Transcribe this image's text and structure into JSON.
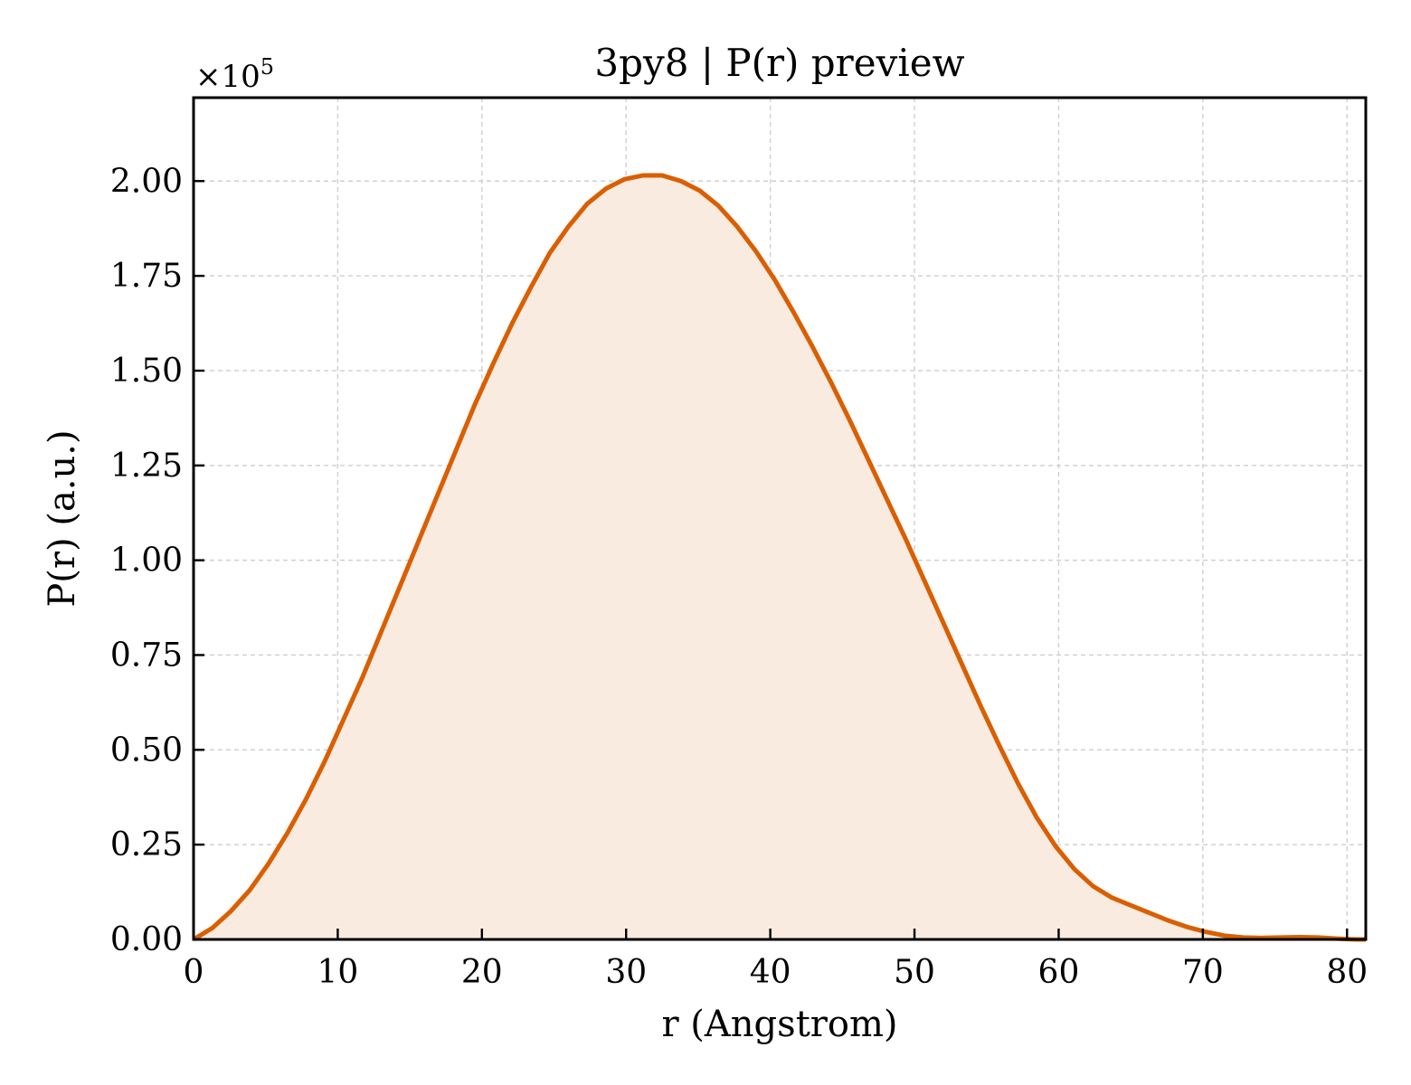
{
  "chart_data": {
    "type": "area",
    "title": "3py8 | P(r) preview",
    "xlabel": "r (Angstrom)",
    "ylabel": "P(r) (a.u.)",
    "y_multiplier": "×10",
    "y_multiplier_exponent": "5",
    "xlim": [
      0,
      81.3
    ],
    "ylim": [
      0,
      2.22
    ],
    "x_ticks": [
      0,
      10,
      20,
      30,
      40,
      50,
      60,
      70,
      80
    ],
    "x_tick_labels": [
      "0",
      "10",
      "20",
      "30",
      "40",
      "50",
      "60",
      "70",
      "80"
    ],
    "y_ticks": [
      0,
      0.25,
      0.5,
      0.75,
      1.0,
      1.25,
      1.5,
      1.75,
      2.0
    ],
    "y_tick_labels": [
      "0.00",
      "0.25",
      "0.50",
      "0.75",
      "1.00",
      "1.25",
      "1.50",
      "1.75",
      "2.00"
    ],
    "grid": true,
    "line_color": "#d95f02",
    "fill_color": "#f9ebe0",
    "series": [
      {
        "x": [
          0,
          1.3,
          2.6,
          3.9,
          5.2,
          6.5,
          7.8,
          9.1,
          10.4,
          11.7,
          13.0,
          14.3,
          15.6,
          16.9,
          18.2,
          19.5,
          20.8,
          22.1,
          23.4,
          24.7,
          26.0,
          27.3,
          28.6,
          29.9,
          31.2,
          32.5,
          33.8,
          35.1,
          36.4,
          37.7,
          39.0,
          40.3,
          41.6,
          42.9,
          44.2,
          45.5,
          46.8,
          48.1,
          49.4,
          50.7,
          52.0,
          53.3,
          54.6,
          55.9,
          57.2,
          58.5,
          59.8,
          61.1,
          62.4,
          63.7,
          65.0,
          66.3,
          67.6,
          68.9,
          70.2,
          71.5,
          72.8,
          74.1,
          75.4,
          76.7,
          78.0,
          79.3,
          80.6,
          81.3
        ],
        "y": [
          0.0,
          0.03,
          0.075,
          0.13,
          0.2,
          0.28,
          0.37,
          0.47,
          0.58,
          0.69,
          0.81,
          0.93,
          1.05,
          1.17,
          1.29,
          1.41,
          1.52,
          1.625,
          1.72,
          1.81,
          1.88,
          1.94,
          1.98,
          2.005,
          2.015,
          2.015,
          2.0,
          1.975,
          1.935,
          1.88,
          1.815,
          1.74,
          1.655,
          1.565,
          1.47,
          1.37,
          1.265,
          1.16,
          1.055,
          0.945,
          0.835,
          0.725,
          0.615,
          0.51,
          0.41,
          0.32,
          0.245,
          0.185,
          0.14,
          0.11,
          0.09,
          0.07,
          0.05,
          0.033,
          0.02,
          0.01,
          0.005,
          0.004,
          0.005,
          0.006,
          0.005,
          0.002,
          0.0,
          0.0
        ]
      }
    ]
  }
}
